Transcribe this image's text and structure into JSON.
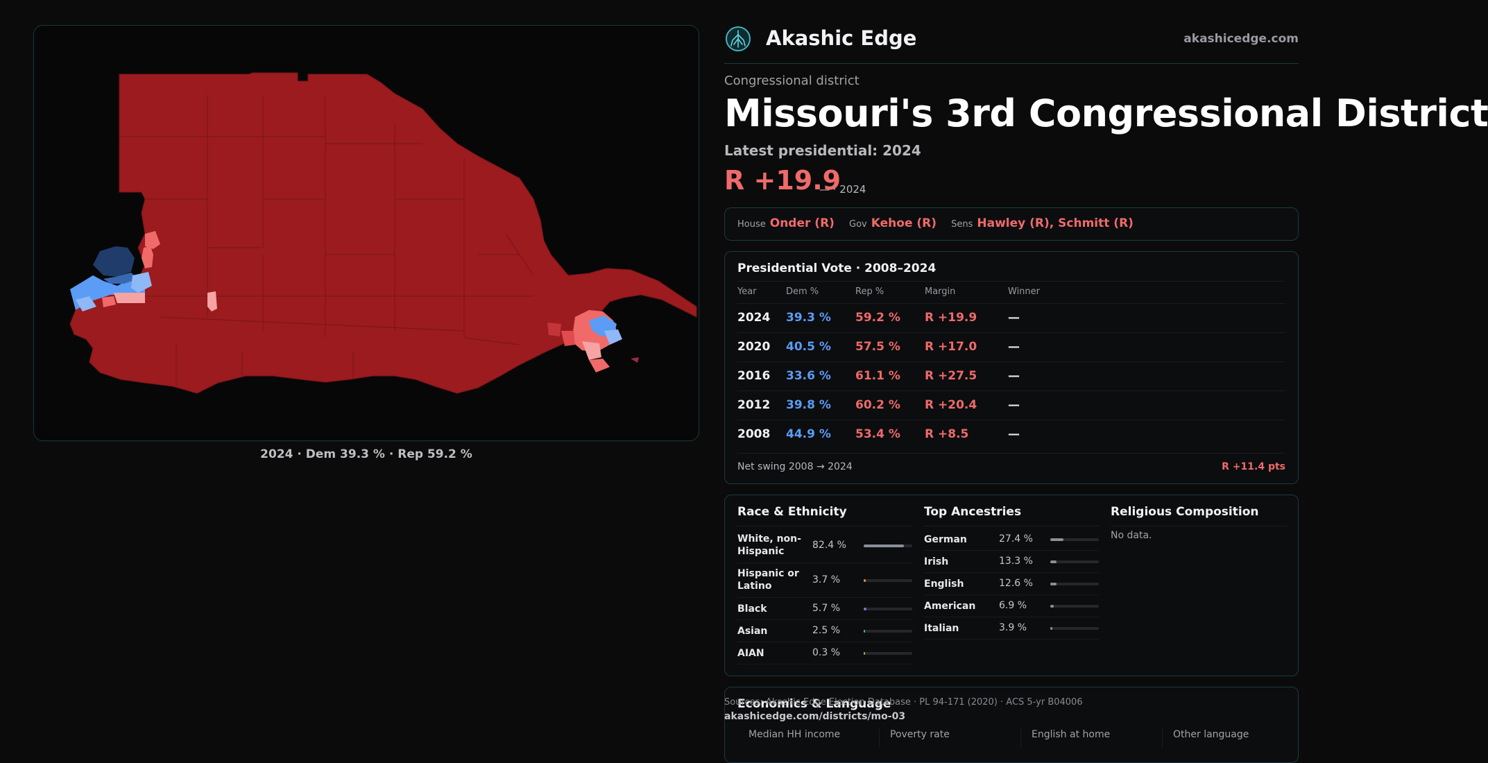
{
  "colors": {
    "rep_dark": "#9b1b1e",
    "rep_light": "#f06a6a",
    "dem": "#5b9cf6",
    "dem_dark": "#1f3c6b",
    "accent_border": "#1d3a3e"
  },
  "header": {
    "logo_icon": "tree-of-life-logo",
    "brand": "Akashic Edge",
    "site": "akashicedge.com"
  },
  "map": {
    "caption": "2024 · Dem 39.3 % · Rep 59.2 %"
  },
  "district": {
    "kicker": "Congressional district",
    "title": "Missouri's 3rd Congressional District",
    "latest": "Latest presidential: 2024",
    "margin": "R +19.9",
    "margin_sub": "— · 2024"
  },
  "officials": {
    "house_label": "House",
    "house": "Onder (R)",
    "gov_label": "Gov",
    "gov": "Kehoe (R)",
    "sens_label": "Sens",
    "sens": "Hawley (R), Schmitt (R)"
  },
  "presidential": {
    "title": "Presidential Vote · 2008–2024",
    "headers": [
      "Year",
      "Dem %",
      "Rep %",
      "Margin",
      "Winner"
    ],
    "rows": [
      {
        "year": "2024",
        "dem": "39.3 %",
        "rep": "59.2 %",
        "margin": "R +19.9",
        "winner": "—"
      },
      {
        "year": "2020",
        "dem": "40.5 %",
        "rep": "57.5 %",
        "margin": "R +17.0",
        "winner": "—"
      },
      {
        "year": "2016",
        "dem": "33.6 %",
        "rep": "61.1 %",
        "margin": "R +27.5",
        "winner": "—"
      },
      {
        "year": "2012",
        "dem": "39.8 %",
        "rep": "60.2 %",
        "margin": "R +20.4",
        "winner": "—"
      },
      {
        "year": "2008",
        "dem": "44.9 %",
        "rep": "53.4 %",
        "margin": "R +8.5",
        "winner": "—"
      }
    ],
    "swing_label": "Net swing 2008 → 2024",
    "swing_value": "R +11.4 pts"
  },
  "race": {
    "title": "Race & Ethnicity",
    "items": [
      {
        "label": "White, non-Hispanic",
        "value": "82.4 %",
        "pct": 82.4,
        "color": "#8a8f98"
      },
      {
        "label": "Hispanic or Latino",
        "value": "3.7 %",
        "pct": 3.7,
        "color": "#e08a3c"
      },
      {
        "label": "Black",
        "value": "5.7 %",
        "pct": 5.7,
        "color": "#8a6fe0"
      },
      {
        "label": "Asian",
        "value": "2.5 %",
        "pct": 2.5,
        "color": "#3fb6a8"
      },
      {
        "label": "AIAN",
        "value": "0.3 %",
        "pct": 0.3,
        "color": "#c8a040"
      }
    ]
  },
  "ancestry": {
    "title": "Top Ancestries",
    "items": [
      {
        "label": "German",
        "value": "27.4 %",
        "pct": 27.4
      },
      {
        "label": "Irish",
        "value": "13.3 %",
        "pct": 13.3
      },
      {
        "label": "English",
        "value": "12.6 %",
        "pct": 12.6
      },
      {
        "label": "American",
        "value": "6.9 %",
        "pct": 6.9
      },
      {
        "label": "Italian",
        "value": "3.9 %",
        "pct": 3.9
      }
    ]
  },
  "religion": {
    "title": "Religious Composition",
    "empty": "No data."
  },
  "economics": {
    "title": "Economics & Language",
    "items": [
      "Median HH income",
      "Poverty rate",
      "English at home",
      "Other language"
    ]
  },
  "footer": {
    "source": "Sources: Akashic Edge Election Database · PL 94-171 (2020) · ACS 5-yr B04006",
    "url": "akashicedge.com/districts/mo-03"
  }
}
